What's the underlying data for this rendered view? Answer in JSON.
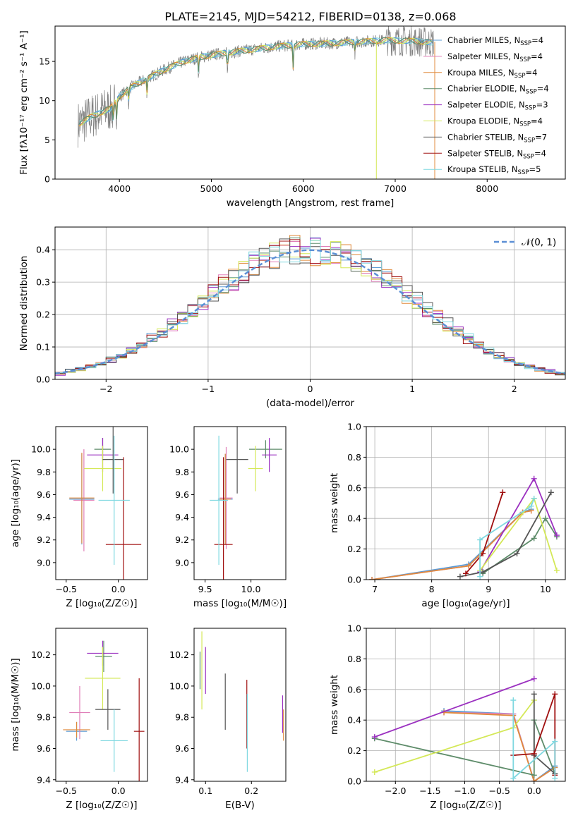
{
  "figure": {
    "title": "PLATE=2145, MJD=54212, FIBERID=0138, z=0.068",
    "colors": [
      "#5b9bd5",
      "#e07fb8",
      "#e08a3c",
      "#5e8c6a",
      "#9b30c0",
      "#d4e857",
      "#555555",
      "#a01010",
      "#7fd8e0"
    ]
  },
  "chart_data": [
    {
      "id": "spectrum",
      "type": "line",
      "title": "PLATE=2145, MJD=54212, FIBERID=0138, z=0.068",
      "xlabel": "wavelength [Angstrom, rest frame]",
      "ylabel": "Flux [fλ10⁻¹⁷ erg cm⁻² s⁻¹ A⁻¹]",
      "xlim": [
        3300,
        8850
      ],
      "ylim": [
        0,
        19.5
      ],
      "xticks": [
        "4000",
        "5000",
        "6000",
        "7000",
        "8000"
      ],
      "yticks": [
        "0",
        "5",
        "10",
        "15"
      ],
      "grid": false,
      "legend_position": "right",
      "legend": [
        "Chabrier MILES, N_SSP=4",
        "Salpeter MILES, N_SSP=4",
        "Kroupa MILES, N_SSP=4",
        "Chabrier ELODIE, N_SSP=4",
        "Salpeter ELODIE, N_SSP=3",
        "Kroupa ELODIE, N_SSP=4",
        "Chabrier STELIB, N_SSP=7",
        "Salpeter STELIB, N_SSP=4",
        "Kroupa STELIB, N_SSP=5"
      ],
      "continuum": [
        [
          3550,
          7
        ],
        [
          3700,
          8
        ],
        [
          3800,
          8.5
        ],
        [
          3900,
          9
        ],
        [
          4000,
          10.5
        ],
        [
          4100,
          11.5
        ],
        [
          4200,
          12.2
        ],
        [
          4300,
          12.8
        ],
        [
          4500,
          14
        ],
        [
          4700,
          15
        ],
        [
          4900,
          15.6
        ],
        [
          5100,
          16
        ],
        [
          5300,
          16.3
        ],
        [
          5500,
          16.6
        ],
        [
          5700,
          16.9
        ],
        [
          6000,
          17.2
        ],
        [
          6300,
          17.3
        ],
        [
          6600,
          17.5
        ],
        [
          6900,
          17.7
        ],
        [
          7200,
          17.6
        ],
        [
          7420,
          17.4
        ]
      ]
    },
    {
      "id": "residuals",
      "type": "histogram",
      "xlabel": "(data-model)/error",
      "ylabel": "Normed distribution",
      "xlim": [
        -2.5,
        2.5
      ],
      "ylim": [
        0,
        0.47
      ],
      "xticks": [
        "−2",
        "−1",
        "0",
        "1",
        "2"
      ],
      "yticks": [
        "0.0",
        "0.1",
        "0.2",
        "0.3",
        "0.4"
      ],
      "grid": true,
      "legend_position": "upper right",
      "legend": [
        "𝒩(0, 1)"
      ],
      "bin_width": 0.1,
      "gauss_values": [
        0.018,
        0.024,
        0.03,
        0.039,
        0.048,
        0.06,
        0.073,
        0.088,
        0.105,
        0.125,
        0.146,
        0.168,
        0.19,
        0.215,
        0.24,
        0.265,
        0.29,
        0.312,
        0.333,
        0.352,
        0.368,
        0.381,
        0.391,
        0.397,
        0.399,
        0.399,
        0.397,
        0.391,
        0.381,
        0.368,
        0.352,
        0.333,
        0.312,
        0.29,
        0.265,
        0.24,
        0.215,
        0.19,
        0.168,
        0.146,
        0.125,
        0.105,
        0.088,
        0.073,
        0.06,
        0.048,
        0.039,
        0.03,
        0.024,
        0.018
      ]
    },
    {
      "id": "age-vs-Z",
      "type": "errorbar",
      "xlabel": "Z [log₁₀(Z/Z☉)]",
      "ylabel": "age  [log₁₀(age/yr)]",
      "xlim": [
        -0.6,
        0.28
      ],
      "ylim": [
        8.85,
        10.2
      ],
      "xticks": [
        "−0.5",
        "0.0"
      ],
      "yticks": [
        "9.0",
        "9.2",
        "9.4",
        "9.6",
        "9.8",
        "10.0"
      ],
      "points": [
        {
          "x": -0.35,
          "y": 9.56,
          "xerr": 0.12,
          "yerr": 0.4,
          "c": 0
        },
        {
          "x": -0.33,
          "y": 9.55,
          "xerr": 0.1,
          "yerr": 0.45,
          "c": 1
        },
        {
          "x": -0.35,
          "y": 9.57,
          "xerr": 0.12,
          "yerr": 0.4,
          "c": 2
        },
        {
          "x": -0.15,
          "y": 10.0,
          "xerr": 0.08,
          "yerr": 0.1,
          "c": 3
        },
        {
          "x": -0.15,
          "y": 9.95,
          "xerr": 0.15,
          "yerr": 0.15,
          "c": 4
        },
        {
          "x": -0.15,
          "y": 9.83,
          "xerr": 0.18,
          "yerr": 0.2,
          "c": 5
        },
        {
          "x": -0.05,
          "y": 9.91,
          "xerr": 0.1,
          "yerr": 0.3,
          "c": 6
        },
        {
          "x": 0.05,
          "y": 9.16,
          "xerr": 0.17,
          "yerr": 0.77,
          "c": 7
        },
        {
          "x": -0.04,
          "y": 9.55,
          "xerr": 0.15,
          "yerr": 0.57,
          "c": 8
        }
      ]
    },
    {
      "id": "age-vs-mass",
      "type": "errorbar",
      "xlabel": "mass [log₁₀(M/M☉)]",
      "ylabel": "",
      "xlim": [
        9.38,
        10.38
      ],
      "ylim": [
        8.85,
        10.2
      ],
      "xticks": [
        "9.5",
        "10.0"
      ],
      "yticks": [
        "9.0",
        "9.2",
        "9.4",
        "9.6",
        "9.8",
        "10.0"
      ],
      "points": [
        {
          "x": 9.72,
          "y": 9.56,
          "xerr": 0.08,
          "yerr": 0.4,
          "c": 0
        },
        {
          "x": 9.73,
          "y": 9.57,
          "xerr": 0.07,
          "yerr": 0.45,
          "c": 1
        },
        {
          "x": 9.72,
          "y": 9.56,
          "xerr": 0.06,
          "yerr": 0.4,
          "c": 2
        },
        {
          "x": 10.16,
          "y": 10.0,
          "xerr": 0.18,
          "yerr": 0.08,
          "c": 3
        },
        {
          "x": 10.2,
          "y": 9.95,
          "xerr": 0.08,
          "yerr": 0.15,
          "c": 4
        },
        {
          "x": 10.05,
          "y": 9.83,
          "xerr": 0.08,
          "yerr": 0.2,
          "c": 5
        },
        {
          "x": 9.85,
          "y": 9.91,
          "xerr": 0.12,
          "yerr": 0.3,
          "c": 6
        },
        {
          "x": 9.7,
          "y": 9.16,
          "xerr": 0.1,
          "yerr": 0.77,
          "c": 7
        },
        {
          "x": 9.65,
          "y": 9.55,
          "xerr": 0.1,
          "yerr": 0.57,
          "c": 8
        }
      ]
    },
    {
      "id": "mw-vs-age",
      "type": "line",
      "xlabel": "age  [log₁₀(age/yr)]",
      "ylabel": "mass weight",
      "xlim": [
        6.85,
        10.35
      ],
      "ylim": [
        0,
        1
      ],
      "xticks": [
        "7",
        "8",
        "9",
        "10"
      ],
      "yticks": [
        "0.0",
        "0.2",
        "0.4",
        "0.6",
        "0.8",
        "1.0"
      ],
      "grid": true,
      "series": [
        {
          "c": 0,
          "pts": [
            [
              6.95,
              0
            ],
            [
              8.65,
              0.1
            ],
            [
              9.6,
              0.44
            ],
            [
              9.75,
              0.46
            ]
          ]
        },
        {
          "c": 1,
          "pts": [
            [
              6.95,
              0
            ],
            [
              8.65,
              0.09
            ],
            [
              9.6,
              0.44
            ],
            [
              9.75,
              0.45
            ]
          ]
        },
        {
          "c": 2,
          "pts": [
            [
              6.95,
              0
            ],
            [
              8.65,
              0.09
            ],
            [
              9.6,
              0.44
            ],
            [
              9.75,
              0.45
            ]
          ]
        },
        {
          "c": 3,
          "pts": [
            [
              8.9,
              0.04
            ],
            [
              9.8,
              0.27
            ],
            [
              10.0,
              0.4
            ],
            [
              10.2,
              0.28
            ]
          ]
        },
        {
          "c": 4,
          "pts": [
            [
              8.85,
              0.05
            ],
            [
              9.8,
              0.66
            ],
            [
              10.2,
              0.29
            ]
          ]
        },
        {
          "c": 5,
          "pts": [
            [
              8.85,
              0.06
            ],
            [
              9.8,
              0.53
            ],
            [
              10.2,
              0.06
            ]
          ]
        },
        {
          "c": 6,
          "pts": [
            [
              8.5,
              0.02
            ],
            [
              8.9,
              0.05
            ],
            [
              9.5,
              0.17
            ],
            [
              10.1,
              0.57
            ]
          ]
        },
        {
          "c": 7,
          "pts": [
            [
              8.6,
              0.04
            ],
            [
              8.9,
              0.17
            ],
            [
              9.25,
              0.57
            ]
          ]
        },
        {
          "c": 8,
          "pts": [
            [
              8.85,
              0.02
            ],
            [
              8.85,
              0.26
            ],
            [
              9.75,
              0.48
            ],
            [
              9.8,
              0.53
            ]
          ]
        }
      ]
    },
    {
      "id": "mass-vs-Z",
      "type": "errorbar",
      "xlabel": "Z [log₁₀(Z/Z☉)]",
      "ylabel": "mass [log₁₀(M/M☉)]",
      "xlim": [
        -0.6,
        0.28
      ],
      "ylim": [
        9.39,
        10.37
      ],
      "xticks": [
        "−0.5",
        "0.0"
      ],
      "yticks": [
        "9.4",
        "9.6",
        "9.8",
        "10.0",
        "10.2"
      ],
      "points": [
        {
          "x": -0.4,
          "y": 9.71,
          "xerr": 0.1,
          "yerr": 0.06,
          "c": 0
        },
        {
          "x": -0.37,
          "y": 9.83,
          "xerr": 0.1,
          "yerr": 0.17,
          "c": 1
        },
        {
          "x": -0.4,
          "y": 9.72,
          "xerr": 0.13,
          "yerr": 0.05,
          "c": 2
        },
        {
          "x": -0.14,
          "y": 10.19,
          "xerr": 0.08,
          "yerr": 0.1,
          "c": 3
        },
        {
          "x": -0.15,
          "y": 10.21,
          "xerr": 0.15,
          "yerr": 0.08,
          "c": 4
        },
        {
          "x": -0.15,
          "y": 10.05,
          "xerr": 0.17,
          "yerr": 0.2,
          "c": 5
        },
        {
          "x": -0.1,
          "y": 9.85,
          "xerr": 0.12,
          "yerr": 0.13,
          "c": 6
        },
        {
          "x": 0.2,
          "y": 9.71,
          "xerr": 0.05,
          "yerr": 0.34,
          "c": 7
        },
        {
          "x": -0.04,
          "y": 9.65,
          "xerr": 0.13,
          "yerr": 0.2,
          "c": 8
        }
      ]
    },
    {
      "id": "mass-vs-EBV",
      "type": "errorbar",
      "xlabel": "E(B-V)",
      "ylabel": "",
      "xlim": [
        0.075,
        0.275
      ],
      "ylim": [
        9.39,
        10.37
      ],
      "xticks": [
        "0.1",
        "0.2"
      ],
      "yticks": [
        "9.4",
        "9.6",
        "9.8",
        "10.0",
        "10.2"
      ],
      "points": [
        {
          "x": 0.088,
          "y": 10.1,
          "xerr": 0,
          "yerr": 0.12,
          "c": 3
        },
        {
          "x": 0.092,
          "y": 10.1,
          "xerr": 0,
          "yerr": 0.25,
          "c": 5
        },
        {
          "x": 0.1,
          "y": 10.1,
          "xerr": 0,
          "yerr": 0.15,
          "c": 4
        },
        {
          "x": 0.143,
          "y": 9.9,
          "xerr": 0,
          "yerr": 0.18,
          "c": 6
        },
        {
          "x": 0.19,
          "y": 9.82,
          "xerr": 0,
          "yerr": 0.22,
          "c": 7
        },
        {
          "x": 0.191,
          "y": 9.7,
          "xerr": 0,
          "yerr": 0.25,
          "c": 8
        },
        {
          "x": 0.268,
          "y": 9.82,
          "xerr": 0,
          "yerr": 0.12,
          "c": 4
        },
        {
          "x": 0.27,
          "y": 9.75,
          "xerr": 0,
          "yerr": 0.1,
          "c": 2
        }
      ]
    },
    {
      "id": "mw-vs-Z",
      "type": "line",
      "xlabel": "Z [log₁₀(Z/Z☉)]",
      "ylabel": "mass weight",
      "xlim": [
        -2.42,
        0.45
      ],
      "ylim": [
        0,
        1
      ],
      "xticks": [
        "−2.0",
        "−1.5",
        "−1.0",
        "−0.5",
        "0.0"
      ],
      "yticks": [
        "0.0",
        "0.2",
        "0.4",
        "0.6",
        "0.8",
        "1.0"
      ],
      "grid": true,
      "series": [
        {
          "c": 0,
          "pts": [
            [
              0.3,
              0.1
            ],
            [
              0.0,
              0.0
            ],
            [
              -0.3,
              0.44
            ],
            [
              -1.3,
              0.46
            ]
          ]
        },
        {
          "c": 1,
          "pts": [
            [
              0.3,
              0.09
            ],
            [
              0.0,
              0.0
            ],
            [
              -0.3,
              0.44
            ],
            [
              -1.3,
              0.45
            ]
          ]
        },
        {
          "c": 2,
          "pts": [
            [
              0.3,
              0.09
            ],
            [
              0.0,
              0.0
            ],
            [
              -0.3,
              0.43
            ],
            [
              -1.3,
              0.45
            ]
          ]
        },
        {
          "c": 3,
          "pts": [
            [
              -2.3,
              0.28
            ],
            [
              0.0,
              0.04
            ],
            [
              0.0,
              0.4
            ],
            [
              0.3,
              0.05
            ]
          ]
        },
        {
          "c": 4,
          "pts": [
            [
              -2.3,
              0.29
            ],
            [
              0.0,
              0.67
            ]
          ]
        },
        {
          "c": 5,
          "pts": [
            [
              -2.3,
              0.06
            ],
            [
              -0.3,
              0.35
            ],
            [
              0.0,
              0.53
            ]
          ]
        },
        {
          "c": 6,
          "pts": [
            [
              0.0,
              0.57
            ],
            [
              0.0,
              0.17
            ],
            [
              0.3,
              0.05
            ]
          ]
        },
        {
          "c": 7,
          "pts": [
            [
              -0.3,
              0.17
            ],
            [
              0.0,
              0.18
            ],
            [
              0.3,
              0.57
            ],
            [
              0.3,
              0.04
            ]
          ]
        },
        {
          "c": 8,
          "pts": [
            [
              -0.3,
              0.53
            ],
            [
              -0.3,
              0.02
            ],
            [
              0.3,
              0.26
            ],
            [
              0.3,
              0.02
            ]
          ]
        }
      ]
    }
  ]
}
